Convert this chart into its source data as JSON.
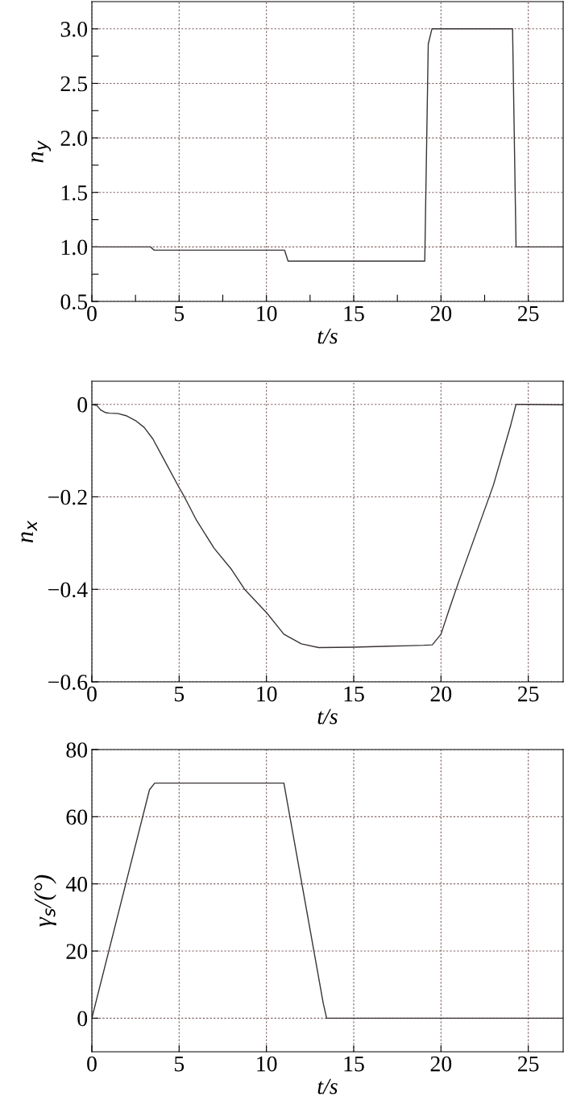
{
  "chart_data": [
    {
      "type": "line",
      "xlabel": "t/s",
      "ylabel": "n$_{y}$",
      "xlim": [
        0,
        27
      ],
      "ylim": [
        0.5,
        3.25
      ],
      "xticks": [
        0,
        {
          "value": 2.5,
          "label": null
        },
        5,
        {
          "value": 7.5,
          "label": null
        },
        10,
        {
          "value": 12.5,
          "label": null
        },
        15,
        {
          "value": 17.5,
          "label": null
        },
        20,
        {
          "value": 22.5,
          "label": null
        },
        25
      ],
      "yticks": [
        {
          "value": 0.5,
          "label": "0.5"
        },
        {
          "value": 0.75,
          "label": null
        },
        {
          "value": 1.0,
          "label": "1.0"
        },
        {
          "value": 1.25,
          "label": null
        },
        {
          "value": 1.5,
          "label": "1.5"
        },
        {
          "value": 1.75,
          "label": null
        },
        {
          "value": 2.0,
          "label": "2.0"
        },
        {
          "value": 2.25,
          "label": null
        },
        {
          "value": 2.5,
          "label": "2.5"
        },
        {
          "value": 2.75,
          "label": null
        },
        {
          "value": 3.0,
          "label": "3.0"
        }
      ],
      "grid": true,
      "line_style": "solid",
      "marker": "none",
      "series": [
        {
          "color": "#3a3333",
          "x": [
            0,
            3.36,
            3.57,
            11.04,
            11.24,
            19.07,
            19.27,
            19.48,
            24.1,
            24.3,
            27
          ],
          "values": [
            1.0,
            1.0,
            0.97,
            0.97,
            0.87,
            0.87,
            2.86,
            3.0,
            3.0,
            1.0,
            1.0
          ]
        }
      ]
    },
    {
      "type": "line",
      "xlabel": "t/s",
      "ylabel": "n$_{x}$",
      "xlim": [
        0,
        27
      ],
      "ylim": [
        -0.6,
        0.05
      ],
      "xticks": [
        0,
        5,
        10,
        15,
        20,
        25
      ],
      "yticks": [
        {
          "value": -0.6,
          "label": "−0.6"
        },
        {
          "value": -0.4,
          "label": "−0.4"
        },
        {
          "value": -0.2,
          "label": "−0.2"
        },
        0
      ],
      "grid": true,
      "line_style": "solid",
      "marker": "none",
      "series": [
        {
          "color": "#3a3333",
          "x": [
            0,
            0.3,
            0.5,
            0.8,
            1,
            1.5,
            2,
            2.5,
            3,
            3.5,
            4,
            5,
            5.3,
            6,
            7,
            8,
            8.75,
            10,
            11,
            12,
            13,
            15,
            17,
            19,
            19.5,
            20,
            20.5,
            21,
            22,
            23,
            24,
            24.3,
            25,
            27
          ],
          "values": [
            0,
            -0.003,
            -0.012,
            -0.018,
            -0.019,
            -0.02,
            -0.025,
            -0.035,
            -0.05,
            -0.075,
            -0.11,
            -0.18,
            -0.2,
            -0.251,
            -0.311,
            -0.357,
            -0.4,
            -0.45,
            -0.497,
            -0.518,
            -0.526,
            -0.525,
            -0.523,
            -0.521,
            -0.52,
            -0.497,
            -0.44,
            -0.385,
            -0.28,
            -0.175,
            -0.044,
            0,
            0,
            -0.001
          ]
        }
      ]
    },
    {
      "type": "line",
      "xlabel": "t/s",
      "ylabel": "γ$_{s}$/(°)",
      "xlim": [
        0,
        27
      ],
      "ylim": [
        -10,
        80
      ],
      "xticks": [
        0,
        5,
        10,
        15,
        20,
        25
      ],
      "yticks": [
        0,
        20,
        40,
        60,
        80
      ],
      "grid": true,
      "line_style": "solid",
      "marker": "none",
      "series": [
        {
          "color": "#3a3333",
          "x": [
            0,
            3.3,
            3.6,
            11.0,
            13.26,
            13.45,
            27
          ],
          "values": [
            0,
            68,
            70,
            70,
            4.3,
            0,
            0
          ]
        }
      ]
    }
  ]
}
